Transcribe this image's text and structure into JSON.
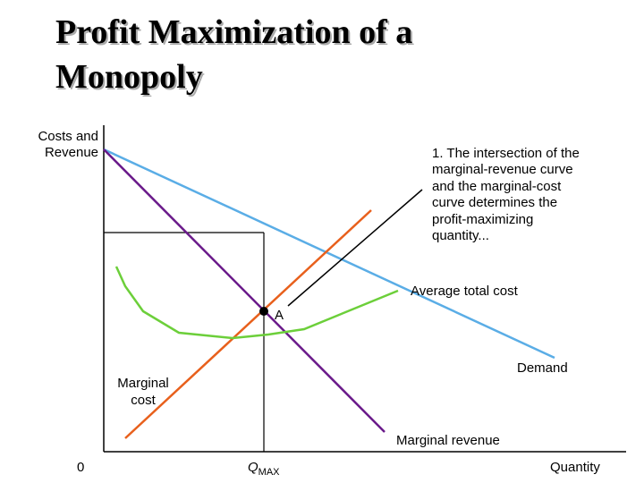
{
  "header": {
    "title": [
      "Profit Maximization of a",
      "Monopoly"
    ]
  },
  "axes": {
    "y_label": [
      "Costs and",
      "Revenue"
    ],
    "x_label": "Quantity",
    "origin": "0",
    "q_max": {
      "symbol": "Q",
      "subscript": "MAX"
    }
  },
  "annotation": [
    "1. The intersection of the",
    "marginal-revenue curve",
    "and the marginal-cost",
    "curve determines the",
    "profit-maximizing",
    "quantity..."
  ],
  "curves": {
    "average_total_cost": "Average total cost",
    "demand": "Demand",
    "marginal_cost": [
      "Marginal",
      "cost"
    ],
    "marginal_revenue": "Marginal revenue"
  },
  "point": "A"
}
